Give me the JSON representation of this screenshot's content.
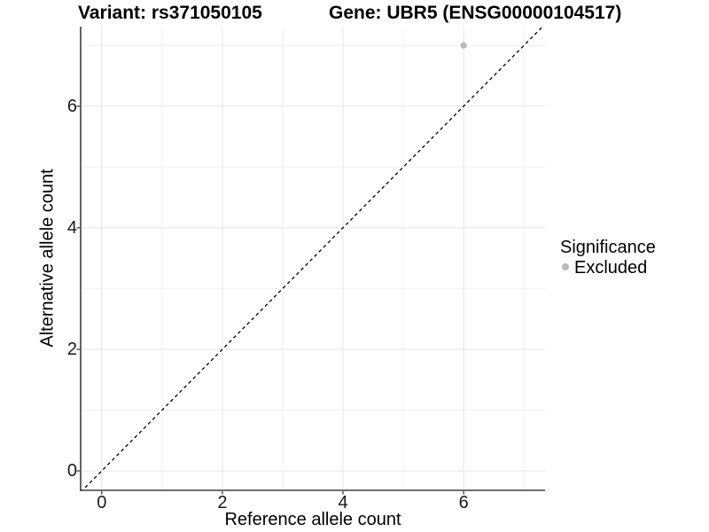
{
  "titles": {
    "variant": "Variant: rs371050105",
    "gene": "Gene: UBR5 (ENSG00000104517)"
  },
  "chart_data": {
    "type": "scatter",
    "title_left": "Variant: rs371050105",
    "title_right": "Gene: UBR5 (ENSG00000104517)",
    "xlabel": "Reference allele count",
    "ylabel": "Alternative allele count",
    "xlim": [
      -0.35,
      7.35
    ],
    "ylim": [
      -0.32,
      7.31
    ],
    "x_major_ticks": [
      0,
      2,
      4,
      6
    ],
    "y_major_ticks": [
      0,
      2,
      4,
      6
    ],
    "x_minor_gridlines": [
      1,
      3,
      5,
      7
    ],
    "y_minor_gridlines": [
      1,
      3,
      5,
      7
    ],
    "grid": true,
    "series": [
      {
        "name": "Excluded",
        "color": "#b9b9b9",
        "marker": "circle",
        "points": [
          {
            "x": 6,
            "y": 7
          }
        ]
      }
    ],
    "reference_line": {
      "type": "abline",
      "slope": 1,
      "intercept": 0,
      "style": "dashed",
      "color": "#000000"
    },
    "legend": {
      "title": "Significance",
      "position": "right",
      "items": [
        {
          "label": "Excluded",
          "color": "#b9b9b9",
          "marker": "circle"
        }
      ]
    },
    "colors": {
      "axis_line": "#3f3f3f",
      "grid_major": "#e5e5e5",
      "grid_minor": "#f1f1f1",
      "tick_text": "#1a1a1a",
      "point": "#b9b9b9"
    }
  }
}
